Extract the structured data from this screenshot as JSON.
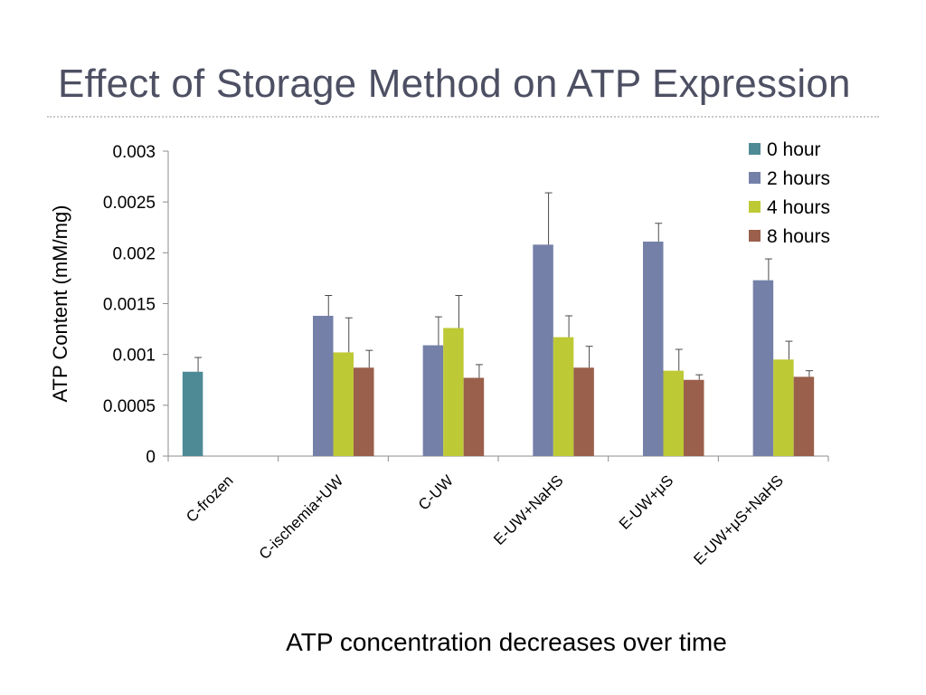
{
  "slide": {
    "title": "Effect of Storage Method on ATP Expression",
    "caption": "ATP concentration decreases over time"
  },
  "chart_data": {
    "type": "bar",
    "ylabel": "ATP Content (mM/mg)",
    "xlabel": "",
    "ylim": [
      0,
      0.003
    ],
    "yticks": [
      "0",
      "0.0005",
      "0.001",
      "0.0015",
      "0.002",
      "0.0025",
      "0.003"
    ],
    "ytick_values": [
      0,
      0.0005,
      0.001,
      0.0015,
      0.002,
      0.0025,
      0.003
    ],
    "categories": [
      "C-frozen",
      "C-ischemia+UW",
      "C-UW",
      "E-UW+NaHS",
      "E-UW+μS",
      "E-UW+μS+NaHS"
    ],
    "legend_position": "top-right",
    "grid": false,
    "series": [
      {
        "name": "0 hour",
        "color": "#4e8a96",
        "values": [
          0.00083,
          null,
          null,
          null,
          null,
          null
        ],
        "errors": [
          0.00014,
          null,
          null,
          null,
          null,
          null
        ]
      },
      {
        "name": "2 hours",
        "color": "#7480a8",
        "values": [
          null,
          0.00138,
          0.00109,
          0.00208,
          0.00211,
          0.00173
        ],
        "errors": [
          null,
          0.0002,
          0.00028,
          0.00051,
          0.00018,
          0.00021
        ]
      },
      {
        "name": "4 hours",
        "color": "#bec936",
        "values": [
          null,
          0.00102,
          0.00126,
          0.00117,
          0.00084,
          0.00095
        ],
        "errors": [
          null,
          0.00034,
          0.00032,
          0.00021,
          0.00021,
          0.00018
        ]
      },
      {
        "name": "8 hours",
        "color": "#9a604b",
        "values": [
          null,
          0.00087,
          0.00077,
          0.00087,
          0.00075,
          0.00078
        ],
        "errors": [
          null,
          0.00017,
          0.00013,
          0.00021,
          5e-05,
          6e-05
        ]
      }
    ]
  }
}
